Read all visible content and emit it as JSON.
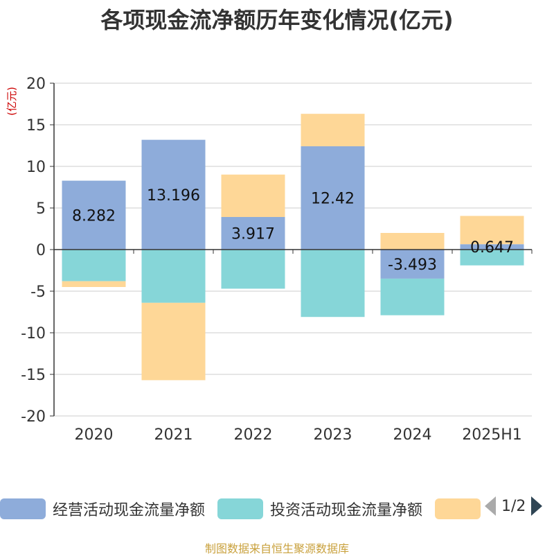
{
  "title": "各项现金流净额历年变化情况(亿元)",
  "footer": "制图数据来自恒生聚源数据库",
  "colors": {
    "operating": "#8eacda",
    "investing": "#86d6d8",
    "financing": "#fed797"
  },
  "legend": {
    "items": [
      {
        "label": "经营活动现金流量净额",
        "color": "#8eacda"
      },
      {
        "label": "投资活动现金流量净额",
        "color": "#86d6d8"
      },
      {
        "label": "",
        "color": "#fed797"
      }
    ],
    "page": "1/2"
  },
  "chart_data": {
    "type": "bar",
    "stacked": true,
    "ylabel": "(亿元)",
    "ylim": [
      -20,
      20
    ],
    "yticks": [
      20,
      15,
      10,
      5,
      0,
      -5,
      -10,
      -15,
      -20
    ],
    "categories": [
      "2020",
      "2021",
      "2022",
      "2023",
      "2024",
      "2025H1"
    ],
    "series": [
      {
        "name": "经营活动现金流量净额",
        "values": [
          8.282,
          13.196,
          3.917,
          12.42,
          -3.493,
          0.647
        ],
        "labels": [
          "8.282",
          "13.196",
          "3.917",
          "12.42",
          "-3.493",
          "0.647"
        ]
      },
      {
        "name": "投资活动现金流量净额",
        "values": [
          -3.8,
          -6.4,
          -4.7,
          -8.1,
          -4.4,
          -1.9
        ]
      },
      {
        "values": [
          -0.7,
          -9.3,
          5.1,
          3.9,
          2.0,
          3.4
        ]
      }
    ],
    "grid": true
  }
}
